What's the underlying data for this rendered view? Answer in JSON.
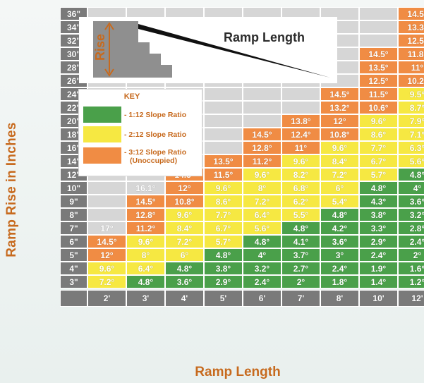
{
  "colors": {
    "green": "#4aa04a",
    "yellow": "#f6e842",
    "orange": "#f08c44",
    "empty": "#d6d6d6",
    "axis_label_cell": "#7a7a7a",
    "axis_title": "#c76a1e"
  },
  "diagram": {
    "rise_label": "Rise",
    "ramp_length_label": "Ramp Length"
  },
  "key": {
    "title": "KEY",
    "items": [
      {
        "color": "green",
        "label": "- 1:12 Slope Ratio"
      },
      {
        "color": "yellow",
        "label": "- 2:12 Slope Ratio"
      },
      {
        "color": "orange",
        "label": "- 3:12 Slope Ratio",
        "sublabel": "(Unoccupied)"
      }
    ]
  },
  "chart_data": {
    "type": "heatmap",
    "xlabel": "Ramp Length",
    "ylabel": "Ramp Rise in Inches",
    "x_categories": [
      "2'",
      "3'",
      "4'",
      "5'",
      "6'",
      "7'",
      "8'",
      "10'",
      "12'"
    ],
    "y_categories": [
      "36\"",
      "34\"",
      "32\"",
      "30\"",
      "28\"",
      "26\"",
      "24\"",
      "22\"",
      "20\"",
      "18\"",
      "16\"",
      "14\"",
      "12\"",
      "10\"",
      "9\"",
      "8\"",
      "7\"",
      "6\"",
      "5\"",
      "4\"",
      "3\""
    ],
    "cells": [
      [
        null,
        null,
        null,
        null,
        null,
        null,
        null,
        null,
        {
          "v": "14.5°",
          "c": "orange"
        }
      ],
      [
        null,
        null,
        null,
        null,
        null,
        null,
        null,
        null,
        {
          "v": "13.3°",
          "c": "orange"
        }
      ],
      [
        null,
        null,
        null,
        null,
        null,
        null,
        null,
        null,
        {
          "v": "12.5°",
          "c": "orange"
        }
      ],
      [
        null,
        null,
        null,
        null,
        null,
        null,
        null,
        {
          "v": "14.5°",
          "c": "orange"
        },
        {
          "v": "11.8°",
          "c": "orange"
        }
      ],
      [
        null,
        null,
        null,
        null,
        null,
        null,
        null,
        {
          "v": "13.5°",
          "c": "orange"
        },
        {
          "v": "11°",
          "c": "orange"
        }
      ],
      [
        null,
        null,
        null,
        null,
        null,
        null,
        null,
        {
          "v": "12.5°",
          "c": "orange"
        },
        {
          "v": "10.2°",
          "c": "orange"
        }
      ],
      [
        null,
        null,
        null,
        null,
        null,
        null,
        {
          "v": "14.5°",
          "c": "orange"
        },
        {
          "v": "11.5°",
          "c": "orange"
        },
        {
          "v": "9.5°",
          "c": "yellow"
        }
      ],
      [
        null,
        null,
        null,
        null,
        null,
        null,
        {
          "v": "13.2°",
          "c": "orange"
        },
        {
          "v": "10.6°",
          "c": "orange"
        },
        {
          "v": "8.7°",
          "c": "yellow"
        }
      ],
      [
        null,
        null,
        null,
        null,
        null,
        {
          "v": "13.8°",
          "c": "orange"
        },
        {
          "v": "12°",
          "c": "orange"
        },
        {
          "v": "9.6°",
          "c": "yellow"
        },
        {
          "v": "7.9°",
          "c": "yellow"
        }
      ],
      [
        null,
        null,
        null,
        null,
        {
          "v": "14.5°",
          "c": "orange"
        },
        {
          "v": "12.4°",
          "c": "orange"
        },
        {
          "v": "10.8°",
          "c": "orange"
        },
        {
          "v": "8.6°",
          "c": "yellow"
        },
        {
          "v": "7.1°",
          "c": "yellow"
        }
      ],
      [
        null,
        null,
        null,
        null,
        {
          "v": "12.8°",
          "c": "orange"
        },
        {
          "v": "11°",
          "c": "orange"
        },
        {
          "v": "9.6°",
          "c": "yellow"
        },
        {
          "v": "7.7°",
          "c": "yellow"
        },
        {
          "v": "6.3°",
          "c": "yellow"
        }
      ],
      [
        null,
        null,
        null,
        {
          "v": "13.5°",
          "c": "orange"
        },
        {
          "v": "11.2°",
          "c": "orange"
        },
        {
          "v": "9.6°",
          "c": "yellow"
        },
        {
          "v": "8.4°",
          "c": "yellow"
        },
        {
          "v": "6.7°",
          "c": "yellow"
        },
        {
          "v": "5.6°",
          "c": "yellow"
        }
      ],
      [
        null,
        null,
        {
          "v": "14.5°",
          "c": "orange"
        },
        {
          "v": "11.5°",
          "c": "orange"
        },
        {
          "v": "9.6°",
          "c": "yellow"
        },
        {
          "v": "8.2°",
          "c": "yellow"
        },
        {
          "v": "7.2°",
          "c": "yellow"
        },
        {
          "v": "5.7°",
          "c": "yellow"
        },
        {
          "v": "4.8°",
          "c": "green"
        }
      ],
      [
        null,
        {
          "v": "16.1°",
          "c": "empty"
        },
        {
          "v": "12°",
          "c": "orange"
        },
        {
          "v": "9.6°",
          "c": "yellow"
        },
        {
          "v": "8°",
          "c": "yellow"
        },
        {
          "v": "6.8°",
          "c": "yellow"
        },
        {
          "v": "6°",
          "c": "yellow"
        },
        {
          "v": "4.8°",
          "c": "green"
        },
        {
          "v": "4°",
          "c": "green"
        }
      ],
      [
        null,
        {
          "v": "14.5°",
          "c": "orange"
        },
        {
          "v": "10.8°",
          "c": "orange"
        },
        {
          "v": "8.6°",
          "c": "yellow"
        },
        {
          "v": "7.2°",
          "c": "yellow"
        },
        {
          "v": "6.2°",
          "c": "yellow"
        },
        {
          "v": "5.4°",
          "c": "yellow"
        },
        {
          "v": "4.3°",
          "c": "green"
        },
        {
          "v": "3.6°",
          "c": "green"
        }
      ],
      [
        null,
        {
          "v": "12.8°",
          "c": "orange"
        },
        {
          "v": "9.6°",
          "c": "yellow"
        },
        {
          "v": "7.7°",
          "c": "yellow"
        },
        {
          "v": "6.4°",
          "c": "yellow"
        },
        {
          "v": "5.5°",
          "c": "yellow"
        },
        {
          "v": "4.8°",
          "c": "green"
        },
        {
          "v": "3.8°",
          "c": "green"
        },
        {
          "v": "3.2°",
          "c": "green"
        }
      ],
      [
        {
          "v": "17°",
          "c": "empty"
        },
        {
          "v": "11.2°",
          "c": "orange"
        },
        {
          "v": "8.4°",
          "c": "yellow"
        },
        {
          "v": "6.7°",
          "c": "yellow"
        },
        {
          "v": "5.6°",
          "c": "yellow"
        },
        {
          "v": "4.8°",
          "c": "green"
        },
        {
          "v": "4.2°",
          "c": "green"
        },
        {
          "v": "3.3°",
          "c": "green"
        },
        {
          "v": "2.8°",
          "c": "green"
        }
      ],
      [
        {
          "v": "14.5°",
          "c": "orange"
        },
        {
          "v": "9.6°",
          "c": "yellow"
        },
        {
          "v": "7.2°",
          "c": "yellow"
        },
        {
          "v": "5.7°",
          "c": "yellow"
        },
        {
          "v": "4.8°",
          "c": "green"
        },
        {
          "v": "4.1°",
          "c": "green"
        },
        {
          "v": "3.6°",
          "c": "green"
        },
        {
          "v": "2.9°",
          "c": "green"
        },
        {
          "v": "2.4°",
          "c": "green"
        }
      ],
      [
        {
          "v": "12°",
          "c": "orange"
        },
        {
          "v": "8°",
          "c": "yellow"
        },
        {
          "v": "6°",
          "c": "yellow"
        },
        {
          "v": "4.8°",
          "c": "green"
        },
        {
          "v": "4°",
          "c": "green"
        },
        {
          "v": "3.7°",
          "c": "green"
        },
        {
          "v": "3°",
          "c": "green"
        },
        {
          "v": "2.4°",
          "c": "green"
        },
        {
          "v": "2°",
          "c": "green"
        }
      ],
      [
        {
          "v": "9.6°",
          "c": "yellow"
        },
        {
          "v": "6.4°",
          "c": "yellow"
        },
        {
          "v": "4.8°",
          "c": "green"
        },
        {
          "v": "3.8°",
          "c": "green"
        },
        {
          "v": "3.2°",
          "c": "green"
        },
        {
          "v": "2.7°",
          "c": "green"
        },
        {
          "v": "2.4°",
          "c": "green"
        },
        {
          "v": "1.9°",
          "c": "green"
        },
        {
          "v": "1.6°",
          "c": "green"
        }
      ],
      [
        {
          "v": "7.2°",
          "c": "yellow"
        },
        {
          "v": "4.8°",
          "c": "green"
        },
        {
          "v": "3.6°",
          "c": "green"
        },
        {
          "v": "2.9°",
          "c": "green"
        },
        {
          "v": "2.4°",
          "c": "green"
        },
        {
          "v": "2°",
          "c": "green"
        },
        {
          "v": "1.8°",
          "c": "green"
        },
        {
          "v": "1.4°",
          "c": "green"
        },
        {
          "v": "1.2°",
          "c": "green"
        }
      ]
    ]
  }
}
